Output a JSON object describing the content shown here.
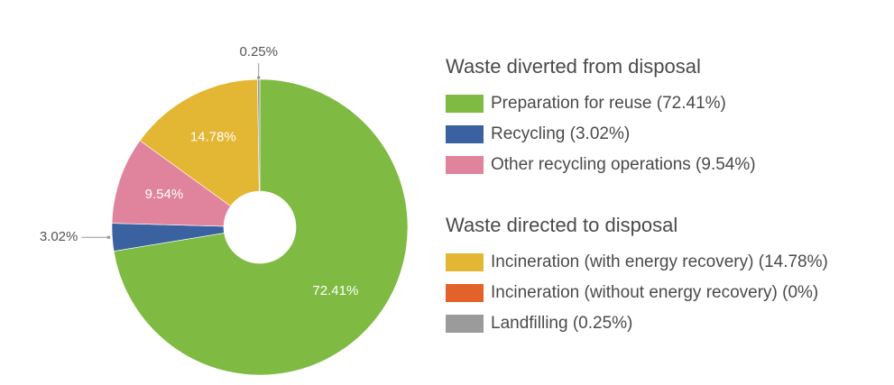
{
  "chart_data": {
    "type": "pie",
    "subtype": "donut",
    "categories": [
      "Preparation for reuse",
      "Recycling",
      "Other recycling operations",
      "Incineration (with energy recovery)",
      "Incineration (without energy recovery)",
      "Landfilling"
    ],
    "values": [
      72.41,
      3.02,
      9.54,
      14.78,
      0,
      0.25
    ],
    "colors": [
      "#7fba42",
      "#3a62a0",
      "#e0849d",
      "#e3b734",
      "#e2622a",
      "#9b9b9b"
    ],
    "slice_labels": [
      "72.41%",
      "3.02%",
      "9.54%",
      "14.78%",
      "",
      "0.25%"
    ],
    "legend": [
      {
        "title": "Waste diverted from disposal",
        "items": [
          {
            "label": "Preparation for reuse (72.41%)",
            "color": "#7fba42"
          },
          {
            "label": "Recycling (3.02%)",
            "color": "#3a62a0"
          },
          {
            "label": "Other recycling operations (9.54%)",
            "color": "#e0849d"
          }
        ]
      },
      {
        "title": "Waste directed to disposal",
        "items": [
          {
            "label": "Incineration (with energy recovery) (14.78%)",
            "color": "#e3b734"
          },
          {
            "label": "Incineration (without energy recovery) (0%)",
            "color": "#e2622a"
          },
          {
            "label": "Landfilling (0.25%)",
            "color": "#9b9b9b"
          }
        ]
      }
    ],
    "legend_position": "right"
  }
}
